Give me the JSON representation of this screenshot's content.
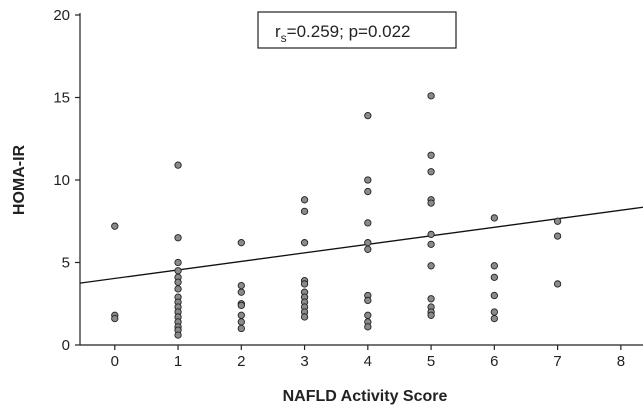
{
  "chart_data": {
    "type": "scatter",
    "title": "",
    "xlabel": "NAFLD Activity Score",
    "ylabel": "HOMA-IR",
    "xlim": [
      -0.55,
      8.35
    ],
    "ylim": [
      0,
      20
    ],
    "x_ticks": [
      "0",
      "1",
      "2",
      "3",
      "4",
      "5",
      "6",
      "7",
      "8"
    ],
    "y_ticks": [
      "0",
      "5",
      "10",
      "15",
      "20"
    ],
    "grid": false,
    "annotation": {
      "r_prefix": "r",
      "r_subscript": "s",
      "text": "=0.259; p=0.022"
    },
    "trendline": {
      "x": [
        -0.55,
        8.35
      ],
      "y": [
        3.75,
        8.35
      ]
    },
    "points": [
      {
        "x": 0,
        "y": 7.2
      },
      {
        "x": 0,
        "y": 1.8
      },
      {
        "x": 0,
        "y": 1.6
      },
      {
        "x": 1,
        "y": 10.9
      },
      {
        "x": 1,
        "y": 6.5
      },
      {
        "x": 1,
        "y": 5.0
      },
      {
        "x": 1,
        "y": 4.5
      },
      {
        "x": 1,
        "y": 4.1
      },
      {
        "x": 1,
        "y": 3.8
      },
      {
        "x": 1,
        "y": 3.4
      },
      {
        "x": 1,
        "y": 2.9
      },
      {
        "x": 1,
        "y": 2.6
      },
      {
        "x": 1,
        "y": 2.3
      },
      {
        "x": 1,
        "y": 2.0
      },
      {
        "x": 1,
        "y": 1.7
      },
      {
        "x": 1,
        "y": 1.4
      },
      {
        "x": 1,
        "y": 1.1
      },
      {
        "x": 1,
        "y": 0.9
      },
      {
        "x": 1,
        "y": 0.6
      },
      {
        "x": 2,
        "y": 6.2
      },
      {
        "x": 2,
        "y": 3.6
      },
      {
        "x": 2,
        "y": 3.2
      },
      {
        "x": 2,
        "y": 2.5
      },
      {
        "x": 2,
        "y": 2.4
      },
      {
        "x": 2,
        "y": 1.8
      },
      {
        "x": 2,
        "y": 1.4
      },
      {
        "x": 2,
        "y": 1.0
      },
      {
        "x": 3,
        "y": 8.8
      },
      {
        "x": 3,
        "y": 8.1
      },
      {
        "x": 3,
        "y": 6.2
      },
      {
        "x": 3,
        "y": 3.9
      },
      {
        "x": 3,
        "y": 3.7
      },
      {
        "x": 3,
        "y": 3.2
      },
      {
        "x": 3,
        "y": 2.9
      },
      {
        "x": 3,
        "y": 2.6
      },
      {
        "x": 3,
        "y": 2.3
      },
      {
        "x": 3,
        "y": 2.0
      },
      {
        "x": 3,
        "y": 1.7
      },
      {
        "x": 4,
        "y": 13.9
      },
      {
        "x": 4,
        "y": 10.0
      },
      {
        "x": 4,
        "y": 9.3
      },
      {
        "x": 4,
        "y": 7.4
      },
      {
        "x": 4,
        "y": 6.2
      },
      {
        "x": 4,
        "y": 5.8
      },
      {
        "x": 4,
        "y": 3.0
      },
      {
        "x": 4,
        "y": 2.7
      },
      {
        "x": 4,
        "y": 1.8
      },
      {
        "x": 4,
        "y": 1.4
      },
      {
        "x": 4,
        "y": 1.1
      },
      {
        "x": 5,
        "y": 15.1
      },
      {
        "x": 5,
        "y": 11.5
      },
      {
        "x": 5,
        "y": 10.5
      },
      {
        "x": 5,
        "y": 8.8
      },
      {
        "x": 5,
        "y": 8.6
      },
      {
        "x": 5,
        "y": 6.7
      },
      {
        "x": 5,
        "y": 6.1
      },
      {
        "x": 5,
        "y": 4.8
      },
      {
        "x": 5,
        "y": 2.8
      },
      {
        "x": 5,
        "y": 2.3
      },
      {
        "x": 5,
        "y": 2.0
      },
      {
        "x": 5,
        "y": 1.8
      },
      {
        "x": 6,
        "y": 7.7
      },
      {
        "x": 6,
        "y": 4.8
      },
      {
        "x": 6,
        "y": 4.1
      },
      {
        "x": 6,
        "y": 3.0
      },
      {
        "x": 6,
        "y": 2.0
      },
      {
        "x": 6,
        "y": 1.6
      },
      {
        "x": 7,
        "y": 7.5
      },
      {
        "x": 7,
        "y": 6.6
      },
      {
        "x": 7,
        "y": 3.7
      }
    ]
  }
}
